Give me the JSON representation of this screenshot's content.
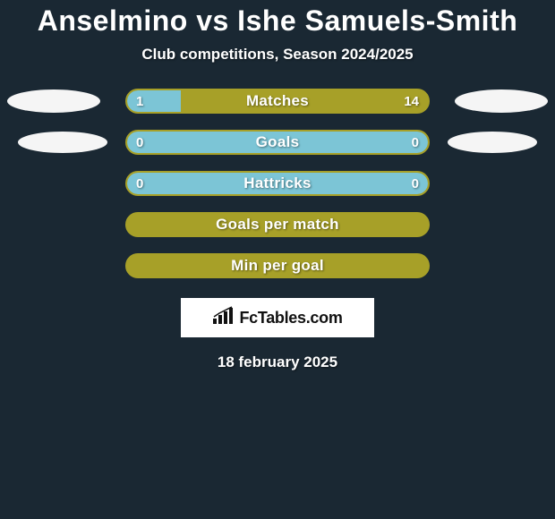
{
  "background_color": "#1a2833",
  "title": {
    "text": "Anselmino vs Ishe Samuels-Smith",
    "color": "#ffffff",
    "fontsize": 32
  },
  "subtitle": {
    "text": "Club competitions, Season 2024/2025",
    "color": "#ffffff",
    "fontsize": 17
  },
  "bar_colors": {
    "left": "#7cc5d6",
    "right": "#a7a028",
    "border": "#a7a028"
  },
  "oval_color": "#f5f5f5",
  "ovals": {
    "row0_left": {
      "w": 104,
      "h": 26,
      "ml": 8,
      "mr": 28
    },
    "row0_right": {
      "w": 104,
      "h": 26,
      "ml": 28,
      "mr": 8
    },
    "row1_left": {
      "w": 100,
      "h": 24,
      "ml": 20,
      "mr": 20
    },
    "row1_right": {
      "w": 100,
      "h": 24,
      "ml": 20,
      "mr": 20
    }
  },
  "rows": [
    {
      "label": "Matches",
      "left": "1",
      "right": "14",
      "left_pct": 18,
      "show_ovals": true
    },
    {
      "label": "Goals",
      "left": "0",
      "right": "0",
      "left_pct": 100,
      "show_ovals": true
    },
    {
      "label": "Hattricks",
      "left": "0",
      "right": "0",
      "left_pct": 100,
      "show_ovals": false
    },
    {
      "label": "Goals per match",
      "left": "",
      "right": "",
      "left_pct": 0,
      "show_ovals": false
    },
    {
      "label": "Min per goal",
      "left": "",
      "right": "",
      "left_pct": 0,
      "show_ovals": false
    }
  ],
  "logo": {
    "icon_name": "bar-chart-icon",
    "text": "FcTables.com",
    "box_bg": "#ffffff",
    "text_color": "#111111"
  },
  "date": "18 february 2025"
}
